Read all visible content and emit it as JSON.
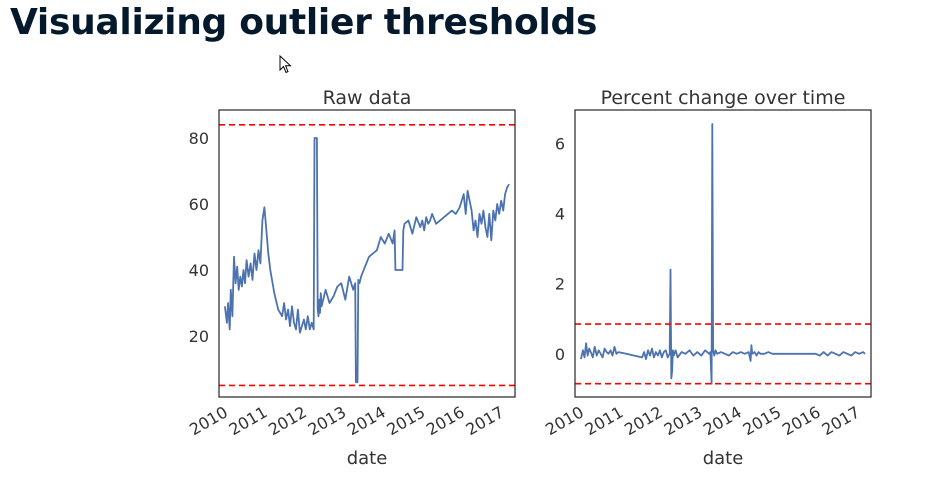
{
  "slide": {
    "title": "Visualizing outlier thresholds"
  },
  "chart_data": [
    {
      "type": "line",
      "title": "Raw data",
      "xlabel": "date",
      "ylabel": "",
      "x_ticks": [
        "2010",
        "2011",
        "2012",
        "2013",
        "2014",
        "2015",
        "2016",
        "2017"
      ],
      "y_ticks": [
        20,
        40,
        60,
        80
      ],
      "xlim": [
        2009.9,
        2017.4
      ],
      "ylim": [
        1.5,
        88.5
      ],
      "grid": false,
      "legend": "none",
      "series": [
        {
          "color": "#4c72b0",
          "x": [
            2010.05,
            2010.1,
            2010.13,
            2010.17,
            2010.2,
            2010.24,
            2010.28,
            2010.32,
            2010.36,
            2010.4,
            2010.44,
            2010.48,
            2010.52,
            2010.56,
            2010.6,
            2010.65,
            2010.7,
            2010.75,
            2010.8,
            2010.85,
            2010.9,
            2010.95,
            2011.0,
            2011.05,
            2011.1,
            2011.15,
            2011.2,
            2011.3,
            2011.4,
            2011.5,
            2011.55,
            2011.6,
            2011.65,
            2011.7,
            2011.75,
            2011.8,
            2011.85,
            2011.9,
            2011.95,
            2012.0,
            2012.05,
            2012.1,
            2012.15,
            2012.2,
            2012.25,
            2012.3,
            2012.32,
            2012.34,
            2012.36,
            2012.38,
            2012.4,
            2012.42,
            2012.44,
            2012.46,
            2012.48,
            2012.5,
            2012.6,
            2012.7,
            2012.8,
            2012.9,
            2013.0,
            2013.1,
            2013.2,
            2013.3,
            2013.35,
            2013.37,
            2013.39,
            2013.41,
            2013.43,
            2013.46,
            2013.5,
            2013.6,
            2013.7,
            2013.8,
            2013.9,
            2014.0,
            2014.1,
            2014.2,
            2014.3,
            2014.35,
            2014.37,
            2014.39,
            2014.55,
            2014.57,
            2014.6,
            2014.7,
            2014.8,
            2014.9,
            2015.0,
            2015.05,
            2015.1,
            2015.15,
            2015.2,
            2015.25,
            2015.3,
            2015.4,
            2015.8,
            2015.9,
            2016.0,
            2016.05,
            2016.1,
            2016.15,
            2016.2,
            2016.25,
            2016.3,
            2016.35,
            2016.4,
            2016.45,
            2016.5,
            2016.55,
            2016.6,
            2016.65,
            2016.7,
            2016.75,
            2016.8,
            2016.85,
            2016.9,
            2016.95,
            2017.0,
            2017.05,
            2017.1,
            2017.15,
            2017.2,
            2017.25
          ],
          "y": [
            29,
            24,
            30,
            22,
            34,
            26,
            44,
            36,
            41,
            34,
            38,
            35,
            40,
            36,
            43,
            38,
            42,
            37,
            45,
            40,
            46,
            42,
            55,
            59,
            52,
            45,
            40,
            33,
            28,
            26,
            30,
            25,
            28,
            23,
            29,
            24,
            22,
            28,
            21,
            23,
            25,
            22,
            26,
            22,
            24,
            22,
            80,
            80,
            80,
            80,
            28,
            26,
            31,
            27,
            33,
            29,
            34,
            30,
            32,
            35,
            36,
            31,
            38,
            34,
            36,
            6,
            6,
            6,
            37,
            36,
            38,
            41,
            44,
            45,
            46,
            50,
            48,
            51,
            48,
            52,
            40,
            40,
            40,
            52,
            54,
            55,
            51,
            56,
            53,
            55,
            52,
            56,
            54,
            55,
            57,
            54,
            58,
            57,
            59,
            61,
            63,
            57,
            64,
            61,
            58,
            52,
            55,
            50,
            57,
            54,
            58,
            53,
            50,
            57,
            49,
            58,
            55,
            60,
            57,
            61,
            58,
            63,
            65,
            66
          ]
        }
      ],
      "hlines": [
        {
          "y": 84,
          "color": "#ff0000",
          "style": "dashed"
        },
        {
          "y": 5,
          "color": "#ff0000",
          "style": "dashed"
        }
      ]
    },
    {
      "type": "line",
      "title": "Percent change over time",
      "xlabel": "date",
      "ylabel": "",
      "x_ticks": [
        "2010",
        "2011",
        "2012",
        "2013",
        "2014",
        "2015",
        "2016",
        "2017"
      ],
      "y_ticks": [
        0,
        2,
        4,
        6
      ],
      "xlim": [
        2009.9,
        2017.4
      ],
      "ylim": [
        -1.23,
        6.95
      ],
      "grid": false,
      "legend": "none",
      "series": [
        {
          "color": "#4c72b0",
          "x": [
            2010.05,
            2010.1,
            2010.14,
            2010.18,
            2010.22,
            2010.26,
            2010.3,
            2010.35,
            2010.4,
            2010.45,
            2010.5,
            2010.55,
            2010.6,
            2010.65,
            2010.7,
            2010.75,
            2010.8,
            2010.85,
            2010.9,
            2010.95,
            2011.0,
            2011.2,
            2011.4,
            2011.6,
            2011.65,
            2011.7,
            2011.75,
            2011.8,
            2011.85,
            2011.9,
            2011.95,
            2012.0,
            2012.05,
            2012.1,
            2012.15,
            2012.2,
            2012.25,
            2012.3,
            2012.32,
            2012.34,
            2012.36,
            2012.38,
            2012.4,
            2012.45,
            2012.5,
            2012.6,
            2012.7,
            2012.8,
            2012.9,
            2013.0,
            2013.1,
            2013.2,
            2013.3,
            2013.33,
            2013.36,
            2013.38,
            2013.4,
            2013.43,
            2013.46,
            2013.5,
            2013.6,
            2013.7,
            2013.8,
            2013.9,
            2014.0,
            2014.1,
            2014.2,
            2014.3,
            2014.35,
            2014.37,
            2014.39,
            2014.45,
            2014.5,
            2014.55,
            2014.6,
            2014.7,
            2014.8,
            2014.9,
            2015.0,
            2015.4,
            2015.8,
            2016.0,
            2016.1,
            2016.2,
            2016.3,
            2016.4,
            2016.5,
            2016.6,
            2016.7,
            2016.8,
            2016.9,
            2017.0,
            2017.1,
            2017.2,
            2017.25
          ],
          "y": [
            -0.15,
            0.1,
            -0.1,
            0.3,
            -0.05,
            0.15,
            0.05,
            -0.1,
            0.2,
            -0.05,
            0.1,
            0.0,
            -0.1,
            0.15,
            0.05,
            0.0,
            0.1,
            -0.05,
            0.2,
            0.0,
            0.05,
            0.0,
            -0.05,
            -0.1,
            0.05,
            -0.15,
            0.1,
            -0.05,
            0.15,
            -0.1,
            0.05,
            -0.05,
            0.1,
            -0.1,
            0.05,
            0.1,
            -0.1,
            0.0,
            2.4,
            -0.7,
            -0.5,
            0.1,
            -0.05,
            0.1,
            -0.1,
            0.05,
            0.0,
            0.1,
            -0.05,
            0.05,
            -0.05,
            0.1,
            0.0,
            0.05,
            -0.85,
            6.55,
            0.1,
            -0.05,
            0.1,
            0.0,
            0.05,
            0.0,
            -0.05,
            0.05,
            0.0,
            0.05,
            0.0,
            0.05,
            -0.2,
            0.25,
            0.0,
            0.05,
            -0.05,
            0.05,
            0.0,
            0.0,
            0.05,
            0.0,
            0.0,
            0.0,
            0.0,
            0.0,
            -0.05,
            0.05,
            -0.05,
            0.05,
            0.0,
            -0.05,
            0.05,
            0.0,
            -0.05,
            0.05,
            0.0,
            0.05,
            0.0
          ]
        }
      ],
      "hlines": [
        {
          "y": 0.85,
          "color": "#ff0000",
          "style": "dashed"
        },
        {
          "y": -0.85,
          "color": "#ff0000",
          "style": "dashed"
        }
      ]
    }
  ]
}
